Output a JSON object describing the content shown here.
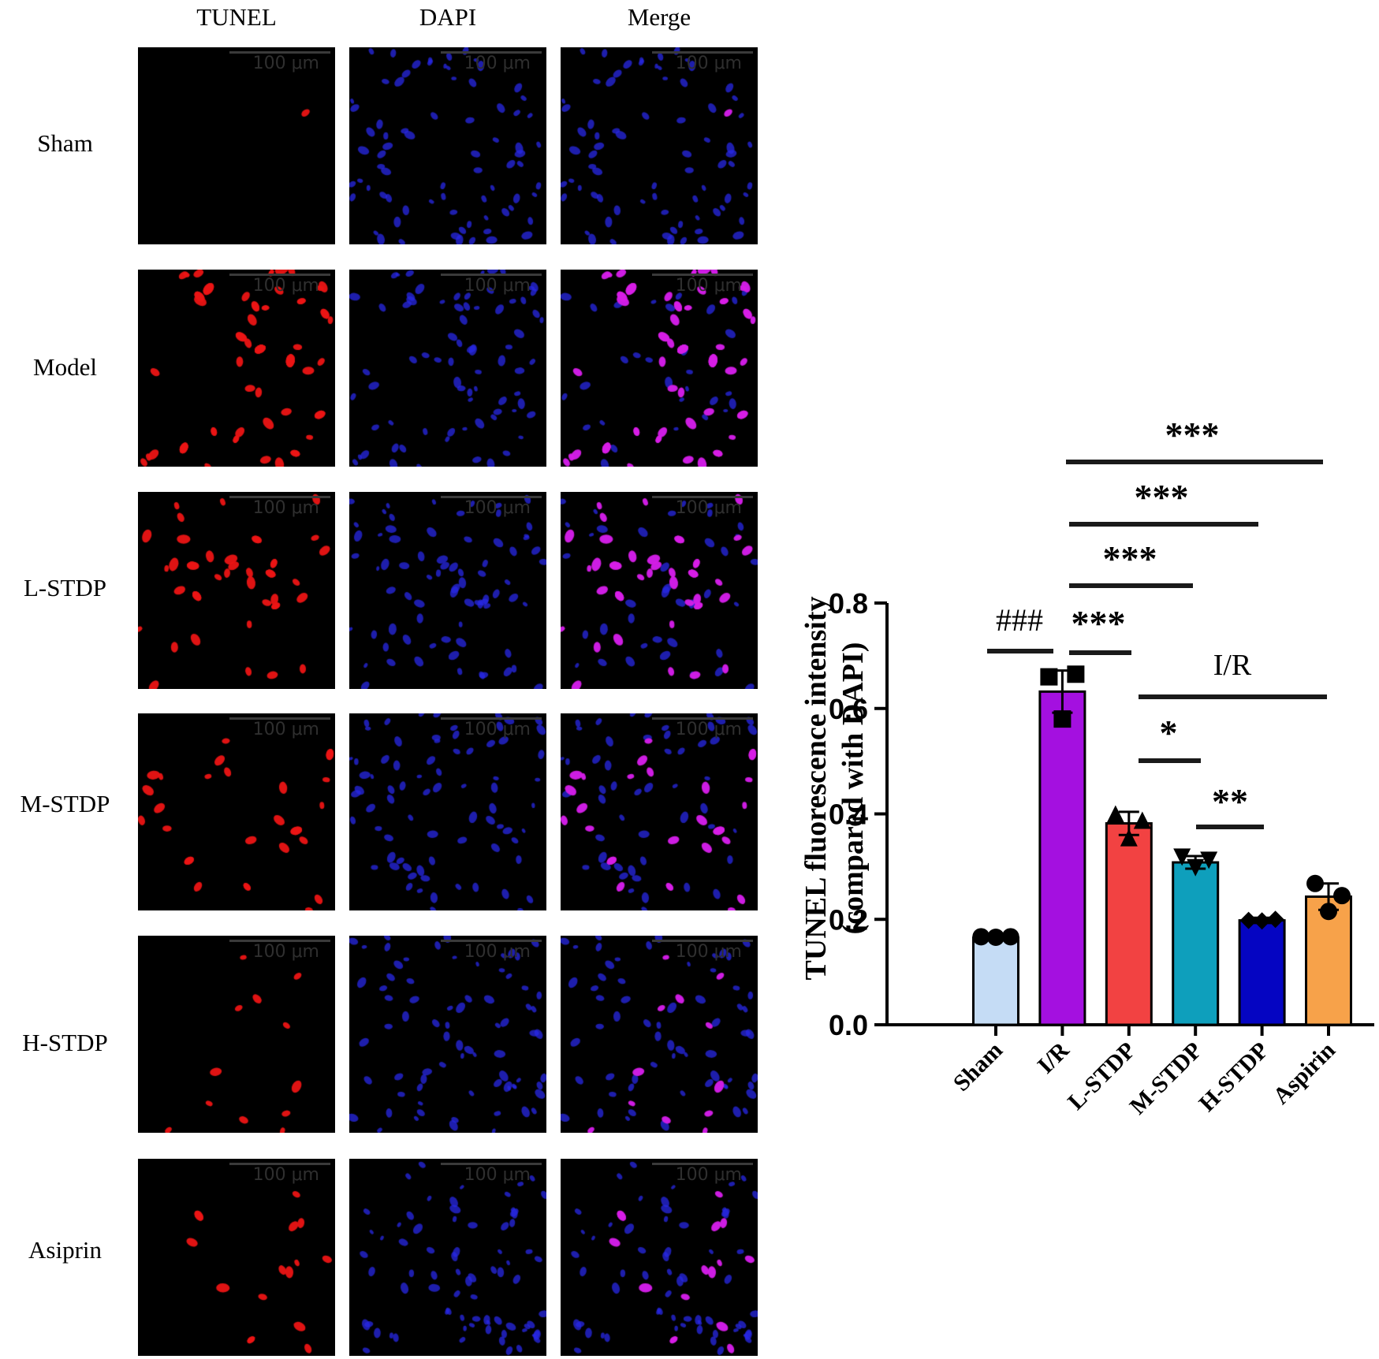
{
  "micrographs": {
    "columns": [
      "TUNEL",
      "DAPI",
      "Merge"
    ],
    "rows": [
      "Sham",
      "Model",
      "L-STDP",
      "M-STDP",
      "H-STDP",
      "Asiprin"
    ],
    "scale_bar_label": "100 μm"
  },
  "chart_data": {
    "type": "bar",
    "categories": [
      "Sham",
      "I/R",
      "L-STDP",
      "M-STDP",
      "H-STDP",
      "Aspirin"
    ],
    "values": [
      0.165,
      0.632,
      0.382,
      0.308,
      0.198,
      0.243
    ],
    "errors": [
      0.002,
      0.04,
      0.022,
      0.012,
      0.005,
      0.025
    ],
    "points": [
      [
        0.167,
        0.167,
        0.166
      ],
      [
        0.66,
        0.665,
        0.58
      ],
      [
        0.4,
        0.388,
        0.355
      ],
      [
        0.318,
        0.312,
        0.298
      ],
      [
        0.198,
        0.2,
        0.197
      ],
      [
        0.268,
        0.245,
        0.215
      ]
    ],
    "markers": [
      "circle",
      "square",
      "triangle-up",
      "triangle-down",
      "diamond",
      "circle"
    ],
    "colors": [
      "#c5dcf5",
      "#a410e0",
      "#f24242",
      "#0e9fbc",
      "#0505c2",
      "#f7a24a"
    ],
    "ylabel": "TUNEL fluorescence intensity",
    "ylabel2": "(compared with DAPI)",
    "ylim": [
      0,
      0.8
    ],
    "yticks": [
      "0.0",
      "0.2",
      "0.4",
      "0.6",
      "0.8"
    ],
    "ytick_values": [
      0,
      0.2,
      0.4,
      0.6,
      0.8
    ],
    "annotations": [
      {
        "from": 0,
        "to": 1,
        "label": "###"
      },
      {
        "from": 1,
        "to": 2,
        "label": "***"
      },
      {
        "from": 1,
        "to": 3,
        "label": "***"
      },
      {
        "from": 1,
        "to": 4,
        "label": "***"
      },
      {
        "from": 1,
        "to": 5,
        "label": "***"
      },
      {
        "from": 2,
        "to": 3,
        "label": "*"
      },
      {
        "from": 3,
        "to": 4,
        "label": "**"
      },
      {
        "from": 2,
        "to": 5,
        "label": "I/R"
      }
    ]
  }
}
